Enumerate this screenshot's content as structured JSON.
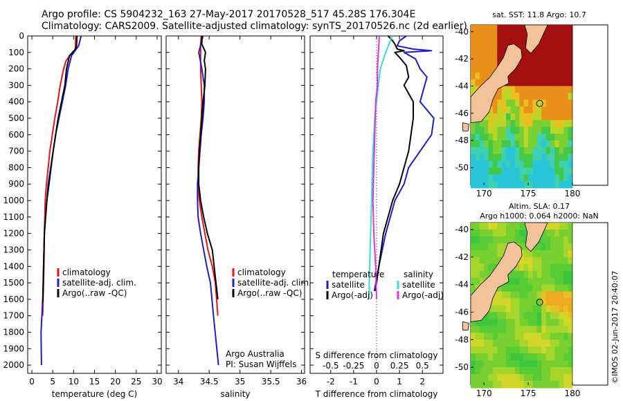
{
  "header": {
    "line1": "Argo profile: CS 5904232_163 27-May-2017 20170528_517 45.28S 176.304E",
    "line2": "Climatology: CARS2009. Satellite-adjusted climatology: synTS_20170526.nc (2d earlier)"
  },
  "colors": {
    "climatology": "#e8130e",
    "satellite": "#1c1ccc",
    "argo": "#000000",
    "s_satellite": "#33dddd",
    "s_argo": "#dd33dd"
  },
  "chart_data": [
    {
      "id": "temperature",
      "type": "line",
      "xlabel": "temperature (deg C)",
      "ylabel": "",
      "xlim": [
        -1,
        31
      ],
      "ylim": [
        2050,
        0
      ],
      "xticks": [
        "0",
        "5",
        "10",
        "15",
        "20",
        "25",
        "30"
      ],
      "xtick_values": [
        0,
        5,
        10,
        15,
        20,
        25,
        30
      ],
      "yticks": [
        "0",
        "100",
        "200",
        "300",
        "400",
        "500",
        "600",
        "700",
        "800",
        "900",
        "1000",
        "1100",
        "1200",
        "1300",
        "1400",
        "1500",
        "1600",
        "1700",
        "1800",
        "1900",
        "2000"
      ],
      "ytick_values": [
        0,
        100,
        200,
        300,
        400,
        500,
        600,
        700,
        800,
        900,
        1000,
        1100,
        1200,
        1300,
        1400,
        1500,
        1600,
        1700,
        1800,
        1900,
        2000
      ],
      "legend": [
        "climatology",
        "satellite-adj. clim.",
        "Argo(..raw -QC)"
      ],
      "legend_position": "center",
      "series": [
        {
          "name": "climatology",
          "color_key": "climatology",
          "x": [
            10.5,
            10.4,
            9.7,
            8.2,
            7.6,
            6.8,
            6.2,
            5.5,
            4.9,
            4.3,
            3.9,
            3.5,
            3.2,
            3.1,
            3.0,
            2.9,
            2.7,
            2.6
          ],
          "y": [
            0,
            80,
            100,
            150,
            200,
            300,
            400,
            500,
            600,
            700,
            800,
            900,
            1000,
            1100,
            1200,
            1400,
            1600,
            1700
          ]
        },
        {
          "name": "satellite-adj. clim.",
          "color_key": "satellite",
          "x": [
            11.8,
            11.2,
            9.5,
            8.7,
            8.1,
            7.3,
            6.5,
            5.7,
            5.1,
            4.5,
            3.9,
            3.6,
            3.3,
            3.0,
            2.8,
            2.6,
            2.2,
            2.3
          ],
          "y": [
            0,
            60,
            120,
            200,
            300,
            400,
            500,
            600,
            700,
            800,
            900,
            1000,
            1100,
            1200,
            1400,
            1600,
            1800,
            2000
          ]
        },
        {
          "name": "Argo(..raw -QC)",
          "color_key": "argo",
          "x": [
            10.8,
            10.7,
            10.3,
            9.0,
            8.3,
            7.9,
            7.1,
            6.3,
            5.7,
            5.1,
            4.6,
            4.1,
            3.6,
            3.3,
            3.0,
            2.8,
            2.7,
            2.6
          ],
          "y": [
            0,
            60,
            85,
            120,
            200,
            300,
            400,
            500,
            600,
            700,
            800,
            900,
            1000,
            1100,
            1200,
            1400,
            1550,
            1620
          ]
        }
      ]
    },
    {
      "id": "salinity",
      "type": "line",
      "xlabel": "salinity",
      "ylabel": "",
      "xlim": [
        33.8,
        36.05
      ],
      "ylim": [
        2050,
        0
      ],
      "xticks": [
        "34",
        "34.5",
        "35",
        "35.5",
        "36"
      ],
      "xtick_values": [
        34,
        34.5,
        35,
        35.5,
        36
      ],
      "legend": [
        "climatology",
        "satellite-adj. clim.",
        "Argo(..raw -QC)"
      ],
      "legend_position": "center",
      "annotation": [
        "Argo Australia",
        "PI: Susan Wijffels"
      ],
      "series": [
        {
          "name": "climatology",
          "color_key": "climatology",
          "x": [
            34.37,
            34.36,
            34.36,
            34.37,
            34.38,
            34.37,
            34.35,
            34.33,
            34.32,
            34.32,
            34.34,
            34.38,
            34.43,
            34.48,
            34.55,
            34.6,
            34.62,
            34.64
          ],
          "y": [
            0,
            50,
            200,
            300,
            400,
            500,
            600,
            700,
            800,
            900,
            1000,
            1100,
            1200,
            1300,
            1400,
            1500,
            1600,
            1700
          ]
        },
        {
          "name": "satellite-adj. clim.",
          "color_key": "satellite",
          "x": [
            34.4,
            34.33,
            34.38,
            34.42,
            34.42,
            34.4,
            34.37,
            34.35,
            34.33,
            34.31,
            34.31,
            34.32,
            34.36,
            34.41,
            34.46,
            34.52,
            34.57,
            34.61,
            34.65
          ],
          "y": [
            0,
            100,
            200,
            300,
            400,
            500,
            600,
            700,
            800,
            900,
            1000,
            1100,
            1200,
            1300,
            1400,
            1500,
            1700,
            1850,
            2000
          ]
        },
        {
          "name": "Argo(..raw -QC)",
          "color_key": "argo",
          "x": [
            34.38,
            34.38,
            34.44,
            34.42,
            34.44,
            34.43,
            34.4,
            34.38,
            34.36,
            34.34,
            34.33,
            34.33,
            34.36,
            34.41,
            34.47,
            34.55,
            34.61,
            34.64
          ],
          "y": [
            0,
            50,
            100,
            150,
            200,
            300,
            400,
            500,
            600,
            700,
            800,
            900,
            1000,
            1100,
            1200,
            1300,
            1500,
            1600
          ]
        }
      ]
    },
    {
      "id": "differences",
      "type": "line",
      "xlabel": "T difference from climatology",
      "xlabel_top": "S difference from climatology",
      "xlim": [
        -2.9,
        2.9
      ],
      "ylim": [
        2050,
        0
      ],
      "xticks": [
        "-2",
        "-1",
        "0",
        "1",
        "2"
      ],
      "xtick_values": [
        -2,
        -1,
        0,
        1,
        2
      ],
      "sticks": [
        "-0.5",
        "-0.25",
        "0",
        "0.25",
        "0.5"
      ],
      "stick_values": [
        -0.5,
        -0.25,
        0,
        0.25,
        0.5
      ],
      "s_to_t_scale": 4,
      "legend_t_title": "temperature",
      "legend_s_title": "salinity",
      "legend": [
        "satellite",
        "Argo(-adj)",
        "satellite",
        "Argo(-adj)"
      ],
      "legend_position": "bottom",
      "series": [
        {
          "name": "satellite",
          "kind": "T",
          "color_key": "satellite",
          "x": [
            1.3,
            1.0,
            0.9,
            1.6,
            2.4,
            1.2,
            1.7,
            1.9,
            2.2,
            2.1,
            1.9,
            2.5,
            2.4,
            1.9,
            1.4,
            1.2,
            0.8,
            0.6,
            0.4,
            0.1,
            -0.1
          ],
          "y": [
            0,
            30,
            60,
            80,
            90,
            100,
            140,
            200,
            250,
            300,
            400,
            500,
            600,
            700,
            800,
            900,
            1000,
            1100,
            1200,
            1400,
            1550
          ]
        },
        {
          "name": "Argo(-adj)",
          "kind": "T",
          "color_key": "argo",
          "x": [
            0.5,
            0.7,
            0.8,
            0.9,
            1.2,
            0.8,
            1.0,
            1.3,
            1.4,
            1.2,
            1.6,
            1.6,
            1.5,
            1.4,
            1.2,
            1.0,
            0.7,
            0.5,
            0.3,
            0.1,
            -0.05
          ],
          "y": [
            0,
            30,
            50,
            80,
            90,
            100,
            130,
            180,
            250,
            300,
            400,
            500,
            600,
            700,
            800,
            900,
            1000,
            1100,
            1200,
            1400,
            1550
          ]
        },
        {
          "name": "satellite",
          "kind": "S",
          "color_key": "s_satellite",
          "x": [
            0.17,
            0.1,
            0.04,
            0.02,
            0.0,
            -0.02,
            -0.04,
            -0.05,
            -0.06,
            -0.07,
            -0.08,
            -0.08
          ],
          "y": [
            0,
            100,
            200,
            300,
            400,
            500,
            700,
            900,
            1100,
            1300,
            1500,
            1600
          ]
        },
        {
          "name": "Argo(-adj)",
          "kind": "S",
          "color_key": "s_argo",
          "x": [
            0.03,
            0.02,
            0.01,
            0.01,
            -0.01,
            -0.02,
            -0.03,
            -0.04,
            -0.03,
            -0.01,
            0.0
          ],
          "y": [
            0,
            100,
            200,
            300,
            400,
            600,
            800,
            1000,
            1200,
            1400,
            1600
          ]
        }
      ]
    },
    {
      "id": "sst_map",
      "type": "heatmap",
      "title": "sat. SST: 11.8  Argo: 10.7",
      "xlim": [
        168.5,
        184
      ],
      "ylim": [
        -51.3,
        -39.5
      ],
      "xticks": [
        "170",
        "175",
        "180"
      ],
      "xtick_values": [
        170,
        175,
        180
      ],
      "yticks": [
        "-40",
        "-42",
        "-44",
        "-46",
        "-48",
        "-50"
      ],
      "ytick_values": [
        -40,
        -42,
        -44,
        -46,
        -48,
        -50
      ],
      "data_lon_max": 180,
      "argo_lon": 176.3,
      "argo_lat": -45.28
    },
    {
      "id": "sla_map",
      "type": "heatmap",
      "title": "Altim. SLA: 0.17",
      "subtitle": "Argo h1000: 0.064  h2000: NaN",
      "xlim": [
        168.5,
        184
      ],
      "ylim": [
        -51.3,
        -39.5
      ],
      "xticks": [
        "170",
        "175",
        "180"
      ],
      "xtick_values": [
        170,
        175,
        180
      ],
      "yticks": [
        "-40",
        "-42",
        "-44",
        "-46",
        "-48",
        "-50"
      ],
      "ytick_values": [
        -40,
        -42,
        -44,
        -46,
        -48,
        -50
      ],
      "data_lon_max": 180,
      "argo_lon": 176.3,
      "argo_lat": -45.28
    }
  ],
  "footer": {
    "stamp": "©IMOS 02-Jun-2017 20:40:07"
  }
}
